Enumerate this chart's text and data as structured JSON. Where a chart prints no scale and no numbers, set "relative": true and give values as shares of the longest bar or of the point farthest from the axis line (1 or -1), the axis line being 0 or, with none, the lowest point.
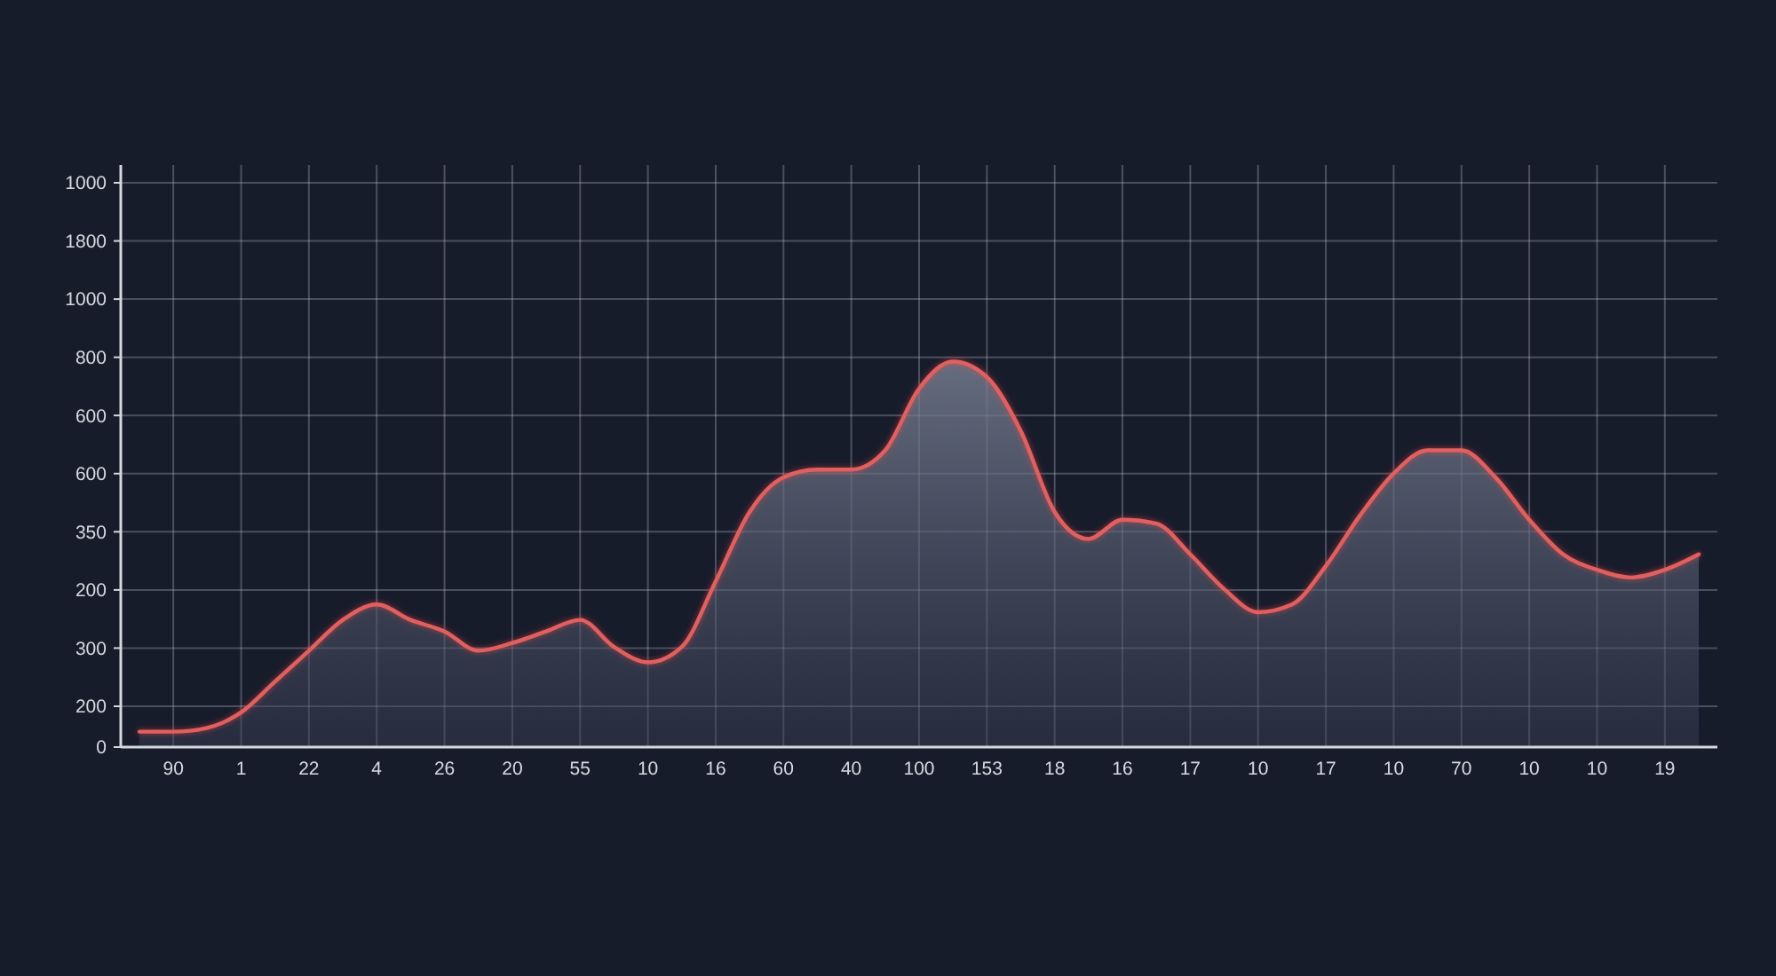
{
  "chart_data": {
    "type": "area",
    "relative": true,
    "grid": true,
    "categories": [
      null,
      "90",
      null,
      "1",
      null,
      "22",
      null,
      "4",
      null,
      "26",
      null,
      "20",
      null,
      "55",
      null,
      "10",
      null,
      "16",
      null,
      "60",
      null,
      "40",
      null,
      "100",
      null,
      "153",
      null,
      "18",
      null,
      "16",
      null,
      "17",
      null,
      "10",
      null,
      "17",
      null,
      "10",
      null,
      "70",
      null,
      "10",
      null,
      "10",
      null,
      "19",
      null
    ],
    "color": "#e0605f",
    "values": [
      0.04,
      0.04,
      0.05,
      0.09,
      0.17,
      0.25,
      0.33,
      0.37,
      0.33,
      0.3,
      0.25,
      0.27,
      0.3,
      0.33,
      0.26,
      0.22,
      0.26,
      0.43,
      0.61,
      0.7,
      0.72,
      0.72,
      0.77,
      0.93,
      1,
      0.96,
      0.82,
      0.61,
      0.54,
      0.59,
      0.58,
      0.5,
      0.41,
      0.35,
      0.37,
      0.47,
      0.6,
      0.71,
      0.77,
      0.77,
      0.7,
      0.59,
      0.5,
      0.46,
      0.44,
      0.46,
      0.5
    ],
    "annotations": [
      "1000",
      "1800",
      "1000",
      "800",
      "600",
      "600",
      "350",
      "200",
      "300",
      "200",
      "0"
    ]
  }
}
